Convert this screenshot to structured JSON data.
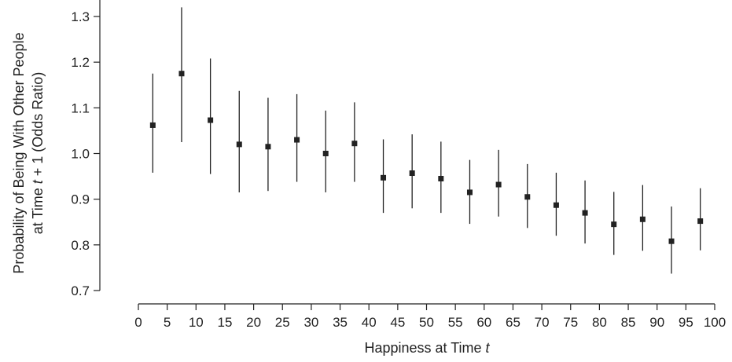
{
  "chart_data": {
    "type": "scatter",
    "title": "",
    "xlabel": {
      "prefix": "Happiness at Time ",
      "italic": "t"
    },
    "ylabel": {
      "line1": "Probability of Being With Other People",
      "line2_prefix": "at Time ",
      "line2_italic": "t",
      "line2_suffix": " + 1 (Odds Ratio)"
    },
    "xlim": [
      0,
      100
    ],
    "ylim": [
      0.7,
      1.3
    ],
    "xticks": [
      "0",
      "5",
      "10",
      "15",
      "20",
      "25",
      "30",
      "35",
      "40",
      "45",
      "50",
      "55",
      "60",
      "65",
      "70",
      "75",
      "80",
      "85",
      "90",
      "95",
      "100"
    ],
    "yticks": [
      "0.7",
      "0.8",
      "0.9",
      "1.0",
      "1.1",
      "1.2",
      "1.3"
    ],
    "grid": false,
    "legend": "none",
    "error_bars": true,
    "series": [
      {
        "points": [
          {
            "x": 2.5,
            "y": 1.062,
            "lo": 0.958,
            "hi": 1.175
          },
          {
            "x": 7.5,
            "y": 1.175,
            "lo": 1.025,
            "hi": 1.32
          },
          {
            "x": 12.5,
            "y": 1.073,
            "lo": 0.955,
            "hi": 1.208
          },
          {
            "x": 17.5,
            "y": 1.02,
            "lo": 0.915,
            "hi": 1.137
          },
          {
            "x": 22.5,
            "y": 1.015,
            "lo": 0.918,
            "hi": 1.122
          },
          {
            "x": 27.5,
            "y": 1.03,
            "lo": 0.938,
            "hi": 1.13
          },
          {
            "x": 32.5,
            "y": 1.0,
            "lo": 0.915,
            "hi": 1.094
          },
          {
            "x": 37.5,
            "y": 1.022,
            "lo": 0.938,
            "hi": 1.112
          },
          {
            "x": 42.5,
            "y": 0.947,
            "lo": 0.87,
            "hi": 1.031
          },
          {
            "x": 47.5,
            "y": 0.957,
            "lo": 0.88,
            "hi": 1.042
          },
          {
            "x": 52.5,
            "y": 0.945,
            "lo": 0.87,
            "hi": 1.026
          },
          {
            "x": 57.5,
            "y": 0.915,
            "lo": 0.846,
            "hi": 0.986
          },
          {
            "x": 62.5,
            "y": 0.932,
            "lo": 0.862,
            "hi": 1.008
          },
          {
            "x": 67.5,
            "y": 0.905,
            "lo": 0.837,
            "hi": 0.977
          },
          {
            "x": 72.5,
            "y": 0.887,
            "lo": 0.82,
            "hi": 0.958
          },
          {
            "x": 77.5,
            "y": 0.87,
            "lo": 0.803,
            "hi": 0.941
          },
          {
            "x": 82.5,
            "y": 0.845,
            "lo": 0.778,
            "hi": 0.916
          },
          {
            "x": 87.5,
            "y": 0.856,
            "lo": 0.787,
            "hi": 0.931
          },
          {
            "x": 92.5,
            "y": 0.808,
            "lo": 0.737,
            "hi": 0.884
          },
          {
            "x": 97.5,
            "y": 0.852,
            "lo": 0.788,
            "hi": 0.924
          }
        ]
      }
    ]
  }
}
